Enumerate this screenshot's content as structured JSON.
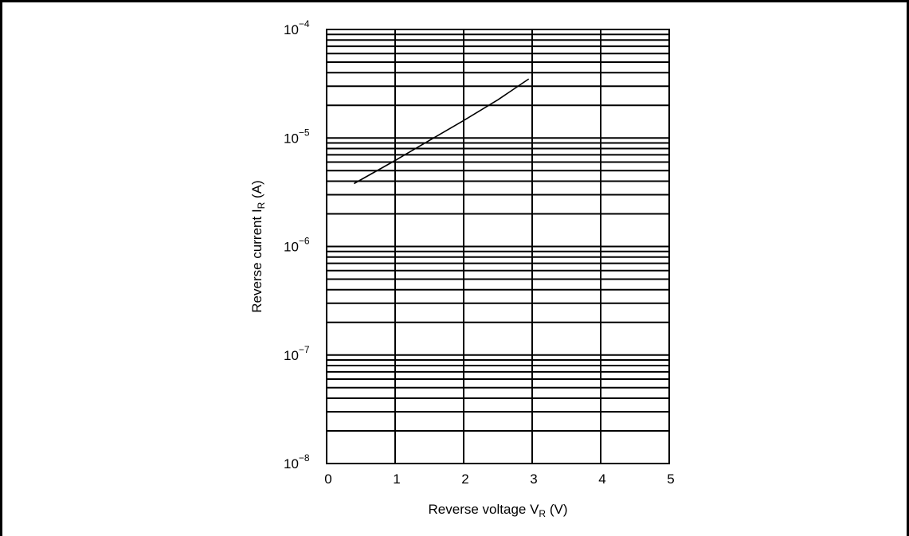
{
  "chart_data": {
    "type": "line",
    "xlabel": {
      "main": "Reverse voltage  V",
      "sub": "R",
      "unit": " (V)"
    },
    "ylabel": {
      "main": "Reverse current  I",
      "sub": "R",
      "unit": "  (A)"
    },
    "xlim": [
      0,
      5
    ],
    "ylim": [
      1e-08,
      0.0001
    ],
    "yscale": "log",
    "grid": true,
    "x_ticks": [
      "0",
      "1",
      "2",
      "3",
      "4",
      "5"
    ],
    "y_ticks": [
      {
        "base": "10",
        "exp": "−8"
      },
      {
        "base": "10",
        "exp": "−7"
      },
      {
        "base": "10",
        "exp": "−6"
      },
      {
        "base": "10",
        "exp": "−5"
      },
      {
        "base": "10",
        "exp": "−4"
      }
    ],
    "series": [
      {
        "x": [
          0.4,
          1.0,
          1.5,
          2.0,
          2.5,
          2.95
        ],
        "y": [
          3.8e-06,
          6.2e-06,
          9.5e-06,
          1.45e-05,
          2.25e-05,
          3.5e-05
        ]
      }
    ]
  }
}
